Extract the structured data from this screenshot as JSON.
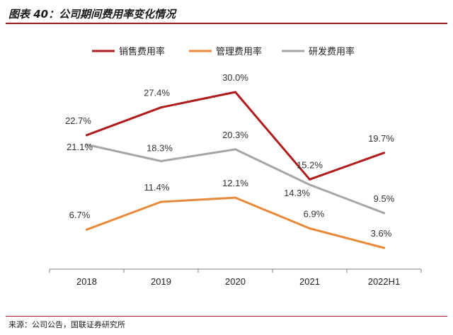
{
  "figure_title": "图表 40：公司期间费用率变化情况",
  "source_note": "来源：公司公告，国联证券研究所",
  "chart_data": {
    "type": "line",
    "categories": [
      "2018",
      "2019",
      "2020",
      "2021",
      "2022H1"
    ],
    "series": [
      {
        "name": "销售费用率",
        "color": "#b01c1c",
        "values": [
          22.7,
          27.4,
          30.0,
          15.2,
          19.7
        ],
        "labels": [
          "22.7%",
          "27.4%",
          "30.0%",
          "15.2%",
          "19.7%"
        ]
      },
      {
        "name": "管理费用率",
        "color": "#e8893a",
        "values": [
          6.7,
          11.4,
          12.1,
          6.9,
          3.6
        ],
        "labels": [
          "6.7%",
          "11.4%",
          "12.1%",
          "6.9%",
          "3.6%"
        ]
      },
      {
        "name": "研发费用率",
        "color": "#a6a6a6",
        "values": [
          21.1,
          18.3,
          20.3,
          14.3,
          9.5
        ],
        "labels": [
          "21.1%",
          "18.3%",
          "20.3%",
          "14.3%",
          "9.5%"
        ]
      }
    ],
    "ylim": [
      0,
      36
    ],
    "grid": false,
    "legend_position": "top"
  }
}
